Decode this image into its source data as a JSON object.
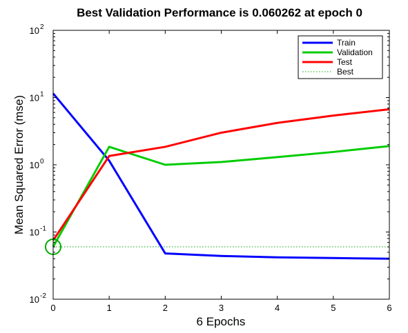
{
  "chart_data": {
    "type": "line",
    "title": "Best Validation Performance is 0.060262 at epoch 0",
    "xlabel": "6 Epochs",
    "ylabel": "Mean Squared Error  (mse)",
    "x": [
      0,
      1,
      2,
      3,
      4,
      5,
      6
    ],
    "xlim": [
      0,
      6
    ],
    "ylim": [
      0.01,
      100
    ],
    "yscale": "log",
    "x_ticks": [
      "0",
      "1",
      "2",
      "3",
      "4",
      "5",
      "6"
    ],
    "y_ticks": [
      {
        "base": "10",
        "exp": "-2"
      },
      {
        "base": "10",
        "exp": "-1"
      },
      {
        "base": "10",
        "exp": "0"
      },
      {
        "base": "10",
        "exp": "1"
      },
      {
        "base": "10",
        "exp": "2"
      }
    ],
    "grid": false,
    "legend_position": "top-right",
    "series": [
      {
        "name": "Train",
        "color": "#0000ff",
        "values": [
          11.5,
          1.15,
          0.048,
          0.044,
          0.042,
          0.041,
          0.04
        ]
      },
      {
        "name": "Validation",
        "color": "#00cc00",
        "values": [
          0.0603,
          1.85,
          1.0,
          1.1,
          1.3,
          1.55,
          1.9
        ]
      },
      {
        "name": "Test",
        "color": "#ff0000",
        "values": [
          0.075,
          1.35,
          1.85,
          3.0,
          4.2,
          5.4,
          6.7
        ]
      }
    ],
    "best": {
      "name": "Best",
      "epoch": 0,
      "value": 0.060262,
      "color": "#00aa00"
    }
  }
}
